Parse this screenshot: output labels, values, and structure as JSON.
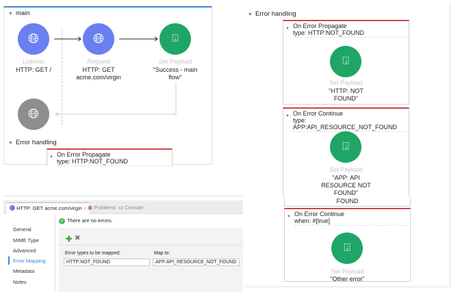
{
  "main_flow": {
    "title": "main",
    "listener": {
      "type": "Listener",
      "name": "HTTP: GET /"
    },
    "request": {
      "type": "Request",
      "name_line1": "HTTP: GET",
      "name_line2": "acme.com/virgin"
    },
    "set_payload": {
      "type": "Set Payload",
      "value_line1": "\"Success - main",
      "value_line2": "flow\""
    },
    "error_handling": "Error handling",
    "handler": {
      "title": "On Error Propagate",
      "condition": "type: HTTP:NOT_FOUND"
    }
  },
  "error_panel": {
    "title": "Error handling",
    "handlers": [
      {
        "title": "On Error Propagate",
        "condition": "type: HTTP:NOT_FOUND",
        "component": "Set Payload",
        "lines": [
          "\"HTTP: NOT",
          "FOUND\""
        ]
      },
      {
        "title": "On Error Continue",
        "condition": "type: APP:API_RESOURCE_NOT_FOUND",
        "component": "Set Payload",
        "lines": [
          "\"APP: API",
          "RESOURCE NOT",
          "FOUND\""
        ],
        "cut_text": "FOUND"
      },
      {
        "title": "On Error Continue",
        "condition": "when: #[true]",
        "component": "Set Payload",
        "lines": [
          "\"Other error\""
        ]
      }
    ]
  },
  "properties": {
    "tabs": [
      {
        "label": "HTTP: GET acme.com/virgin",
        "close": "×"
      },
      {
        "label": "Problems"
      },
      {
        "label": "Console"
      }
    ],
    "status": "There are no errors.",
    "sidebar": [
      "General",
      "MIME Type",
      "Advanced",
      "Error Mapping",
      "Metadata",
      "Notes"
    ],
    "active_sidebar": "Error Mapping",
    "col1_label": "Error types to be mapped:",
    "col2_label": "Map to:",
    "col1_value": "HTTP:NOT_FOUND",
    "col2_value": "APP:API_RESOURCE_NOT_FOUND"
  },
  "colors": {
    "http": "#6a7ff0",
    "payload": "#1fa566",
    "error_border": "#d2424d",
    "accent": "#3b8ad9"
  }
}
